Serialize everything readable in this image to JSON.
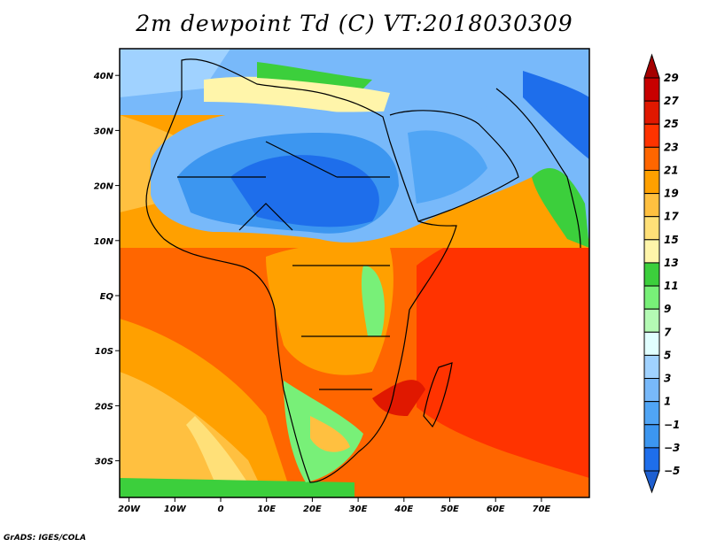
{
  "title": "2m dewpoint Td (C) VT:2018030309",
  "credit": "GrADS: IGES/COLA",
  "chart_data": {
    "type": "heatmap",
    "title": "2m dewpoint Td (C) VT:2018030309",
    "variable": "2m dewpoint Td",
    "units": "C",
    "valid_time": "2018030309",
    "lon_range": [
      -22,
      80
    ],
    "lat_range": [
      -37,
      45
    ],
    "lat_ticks": [
      {
        "v": 40,
        "label": "40N"
      },
      {
        "v": 30,
        "label": "30N"
      },
      {
        "v": 20,
        "label": "20N"
      },
      {
        "v": 10,
        "label": "10N"
      },
      {
        "v": 0,
        "label": "EQ"
      },
      {
        "v": -10,
        "label": "10S"
      },
      {
        "v": -20,
        "label": "20S"
      },
      {
        "v": -30,
        "label": "30S"
      }
    ],
    "lon_ticks": [
      {
        "v": -20,
        "label": "20W"
      },
      {
        "v": -10,
        "label": "10W"
      },
      {
        "v": 0,
        "label": "0"
      },
      {
        "v": 10,
        "label": "10E"
      },
      {
        "v": 20,
        "label": "20E"
      },
      {
        "v": 30,
        "label": "30E"
      },
      {
        "v": 40,
        "label": "40E"
      },
      {
        "v": 50,
        "label": "50E"
      },
      {
        "v": 60,
        "label": "60E"
      },
      {
        "v": 70,
        "label": "70E"
      }
    ],
    "colorbar": {
      "levels": [
        "29",
        "27",
        "25",
        "23",
        "21",
        "19",
        "17",
        "15",
        "13",
        "11",
        "9",
        "7",
        "5",
        "3",
        "1",
        "−1",
        "−3",
        "−5"
      ],
      "top_color": "#a50000",
      "bottom_color": "#1e5fd0",
      "colors": [
        "#c80000",
        "#e01800",
        "#ff3300",
        "#ff6600",
        "#ffa000",
        "#ffc040",
        "#ffe078",
        "#fff5aa",
        "#3ccf3c",
        "#78f078",
        "#b4fab4",
        "#e1ffff",
        "#a0d2ff",
        "#78b9fa",
        "#50a5f5",
        "#3c96f0",
        "#1e6eeb"
      ]
    }
  }
}
